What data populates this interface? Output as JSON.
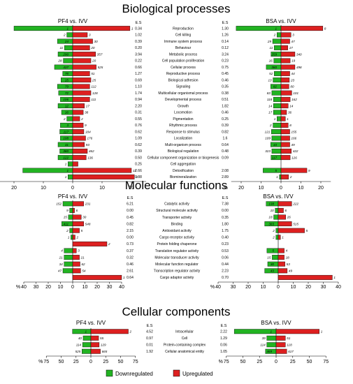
{
  "colors": {
    "down": "#22b322",
    "up": "#dd2020",
    "text": "#000000",
    "guide": "#555555"
  },
  "legend": {
    "down": "Downregulated",
    "up": "Upregulated"
  },
  "chart_data": [
    {
      "type": "bar",
      "title": "Biological processes",
      "left": {
        "title": "PF4 vs. IVV",
        "xlim_pct": 25,
        "ticks": [
          20,
          10,
          0,
          10,
          20
        ]
      },
      "right": {
        "title": "BSA vs. IVV",
        "xlim_pct": 25,
        "ticks": [
          20,
          10,
          0,
          10,
          20
        ]
      },
      "es_label": "E.S",
      "categories": [
        "Reproduction",
        "Cell killing",
        "Immune system process",
        "Behaviour",
        "Metabolic process",
        "Cell population proliferation",
        "Cellular process",
        "Reproductive process",
        "Biological adhesion",
        "Signaling",
        "Multicellular organismal process",
        "Developmental process",
        "Growth",
        "Locomotion",
        "Pigmentation",
        "Rhythmic process",
        "Response to stimulus",
        "Localization",
        "Multi-organism process",
        "Biological regulation",
        "Cellular component organization or biogenesis",
        "Cell aggregation",
        "Detoxification",
        "Biomineralization"
      ],
      "series": [
        {
          "name": "PF4 E.S",
          "values": [
            "0.34",
            "1.02",
            "0.39",
            "0.20",
            "3.94",
            "0.22",
            "0.66",
            "1.27",
            "0.69",
            "1.10",
            "1.74",
            "0.94",
            "2.20",
            "0.31",
            "0.55",
            "0.76",
            "0.62",
            "1.09",
            "0.62",
            "0.39",
            "0.50",
            "0.25",
            "2.66",
            "0.88"
          ]
        },
        {
          "name": "PF4 Downregulated",
          "pct": [
            20.0,
            2.0,
            5.2,
            2.8,
            5.0,
            3.2,
            6.2,
            3.4,
            4.0,
            5.2,
            4.8,
            4.2,
            5.0,
            3.8,
            2.0,
            4.2,
            4.4,
            4.2,
            5.0,
            4.4,
            5.0,
            1.6,
            17.0,
            1.6
          ],
          "counts": [
            "1",
            "2",
            "24",
            "11",
            "290",
            "28",
            "437",
            "78",
            "15",
            "79",
            "72",
            "106",
            "12",
            "16",
            "2",
            "3",
            "117",
            "108",
            "31",
            "380",
            "122",
            "1",
            "1",
            "1"
          ]
        },
        {
          "name": "PF4 Upregulated",
          "pct": [
            19.5,
            5.0,
            6.8,
            5.8,
            7.8,
            6.2,
            8.0,
            5.8,
            6.2,
            5.8,
            6.2,
            5.8,
            4.0,
            3.6,
            2.4,
            3.6,
            3.8,
            4.4,
            4.0,
            5.0,
            4.6,
            1.8,
            20.0,
            21.0
          ],
          "counts": [
            "1",
            "3",
            "30",
            "20",
            "357",
            "20",
            "525",
            "51",
            "25",
            "112",
            "128",
            "111",
            "17",
            "38",
            "2",
            "9",
            "184",
            "176",
            "93",
            "462",
            "136",
            "",
            "11",
            "2"
          ]
        },
        {
          "name": "BSA E.S",
          "values": [
            "1.30",
            "1.26",
            "0.14",
            "0.12",
            "3.24",
            "0.23",
            "0.75",
            "0.45",
            "0.46",
            "0.35",
            "0.38",
            "0.51",
            "1.82",
            "0.46",
            "0.25",
            "0.39",
            "0.82",
            "1.6",
            "0.64",
            "0.48",
            "0.09",
            "",
            "2.08",
            "2.89"
          ]
        },
        {
          "name": "BSA Downregulated",
          "pct": [
            22.5,
            2.0,
            4.2,
            3.4,
            5.0,
            3.6,
            7.4,
            3.4,
            4.0,
            5.2,
            4.6,
            3.8,
            3.8,
            3.8,
            2.0,
            4.0,
            4.8,
            4.6,
            5.2,
            4.6,
            5.0,
            0.0,
            9.0,
            0.8
          ],
          "counts": [
            "1",
            "2",
            "29",
            "11",
            "259",
            "16",
            "380",
            "52",
            "13",
            "82",
            "83",
            "118",
            "14",
            "17",
            "1",
            "2",
            "121",
            "109",
            "33",
            "323",
            "117",
            "",
            "5",
            "1"
          ]
        },
        {
          "name": "BSA Upregulated",
          "pct": [
            21.0,
            5.0,
            4.4,
            3.4,
            7.0,
            4.6,
            7.0,
            4.4,
            4.2,
            4.0,
            5.4,
            4.6,
            3.6,
            2.8,
            2.2,
            3.6,
            4.4,
            4.4,
            4.4,
            5.2,
            4.6,
            0.0,
            13.0,
            3.8
          ],
          "counts": [
            "8",
            "3",
            "47",
            "17",
            "340",
            "19",
            "498",
            "44",
            "23",
            "80",
            "101",
            "162",
            "14",
            "36",
            "1",
            "8",
            "155",
            "166",
            "49",
            "422",
            "126",
            "",
            "9",
            "2"
          ]
        }
      ],
      "x_unit": "%"
    },
    {
      "type": "bar",
      "title": "Molecular functions",
      "left": {
        "title": "PF4 vs. IVV",
        "xlim_pct": 40,
        "ticks": [
          40,
          30,
          20,
          10,
          0,
          10,
          20,
          30,
          40
        ]
      },
      "right": {
        "title": "BSA vs. IVV",
        "xlim_pct": 40,
        "ticks": [
          40,
          30,
          20,
          10,
          0,
          10,
          20,
          30,
          40
        ]
      },
      "es_label": "E.S",
      "categories": [
        "Catalytic activity",
        "Structural molecule activity",
        "Transporter activity",
        "Binding",
        "Antioxidant activity",
        "Cargo receptor activity",
        "Protein folding chaperone",
        "Translation regulator activity",
        "Molecular transducer activity",
        "Molecular function regulator",
        "Transcription regulator activity",
        "Cargo adaptor activity"
      ],
      "series": [
        {
          "name": "PF4 E.S",
          "values": [
            "6.21",
            "0.00",
            "0.45",
            "0.82",
            "2.15",
            "0.00",
            "0.73",
            "0.37",
            "0.32",
            "0.46",
            "2.61",
            "0.64"
          ]
        },
        {
          "name": "PF4 Downregulated",
          "pct": [
            8.0,
            2.5,
            3.5,
            9.0,
            2.5,
            1.5,
            0.0,
            7.0,
            7.0,
            7.0,
            8.0,
            0.0
          ],
          "counts": [
            "152",
            "9",
            "15",
            "411",
            "2",
            "1",
            "",
            "4",
            "21",
            "34",
            "47",
            ""
          ]
        },
        {
          "name": "PF4 Upregulated",
          "pct": [
            9.0,
            1.5,
            7.0,
            9.0,
            5.5,
            2.0,
            28.0,
            3.0,
            5.5,
            6.0,
            6.5,
            40.0
          ],
          "counts": [
            "231",
            "6",
            "30",
            "548",
            "5",
            "2",
            "2",
            "3",
            "21",
            "62",
            "54",
            "1"
          ]
        },
        {
          "name": "BSA E.S",
          "values": [
            "7.38",
            "0.00",
            "0.35",
            "1.80",
            "1.75",
            "0.40",
            "0.23",
            "0.53",
            "0.06",
            "0.44",
            "2.23",
            "0.70"
          ]
        },
        {
          "name": "BSA Downregulated",
          "pct": [
            8.0,
            2.0,
            3.0,
            9.0,
            1.5,
            1.5,
            0.0,
            7.5,
            4.0,
            7.0,
            9.0,
            0.0
          ],
          "counts": [
            "138",
            "10",
            "18",
            "383",
            "2",
            "2",
            "",
            "5",
            "15",
            "30",
            "43",
            ""
          ]
        },
        {
          "name": "BSA Upregulated",
          "pct": [
            9.0,
            3.5,
            5.0,
            9.0,
            17.5,
            1.5,
            0.0,
            4.0,
            4.0,
            4.5,
            6.0,
            36.0
          ],
          "counts": [
            "222",
            "6",
            "26",
            "515",
            "5",
            "1",
            "1",
            "4",
            "18",
            "53",
            "49",
            "1"
          ]
        }
      ],
      "x_unit": "%"
    },
    {
      "type": "bar",
      "title": "Cellular components",
      "left": {
        "title": "PF4 vs. IVV",
        "xlim_pct": 75,
        "ticks": [
          75,
          50,
          25,
          0,
          25,
          50,
          75
        ]
      },
      "right": {
        "title": "BSA vs. IVV",
        "xlim_pct": 75,
        "ticks": [
          75,
          50,
          25,
          0,
          25,
          50,
          75
        ]
      },
      "es_label": "E.S",
      "categories": [
        "Intracellular",
        "Cell",
        "Protein-containing complex",
        "Cellular anatomical entity"
      ],
      "series": [
        {
          "name": "PF4 E.S",
          "values": [
            "4.52",
            "0.97",
            "0.01",
            "1.92"
          ]
        },
        {
          "name": "PF4 Downregulated",
          "pct": [
            31,
            13,
            14,
            15
          ],
          "counts": [
            "1",
            "40",
            "114",
            "525"
          ]
        },
        {
          "name": "PF4 Upregulated",
          "pct": [
            63,
            13,
            14,
            16
          ],
          "counts": [
            "2",
            "55",
            "129",
            "665"
          ]
        },
        {
          "name": "BSA E.S",
          "values": [
            "2.22",
            "1.29",
            "0.06",
            "1.05"
          ]
        },
        {
          "name": "BSA Downregulated",
          "pct": [
            63,
            14,
            14,
            16
          ],
          "counts": [
            "1",
            "39",
            "114",
            "469"
          ]
        },
        {
          "name": "BSA Upregulated",
          "pct": [
            65,
            14,
            14,
            16
          ],
          "counts": [
            "1",
            "51",
            "118",
            "617"
          ]
        }
      ],
      "x_unit": "%"
    }
  ]
}
